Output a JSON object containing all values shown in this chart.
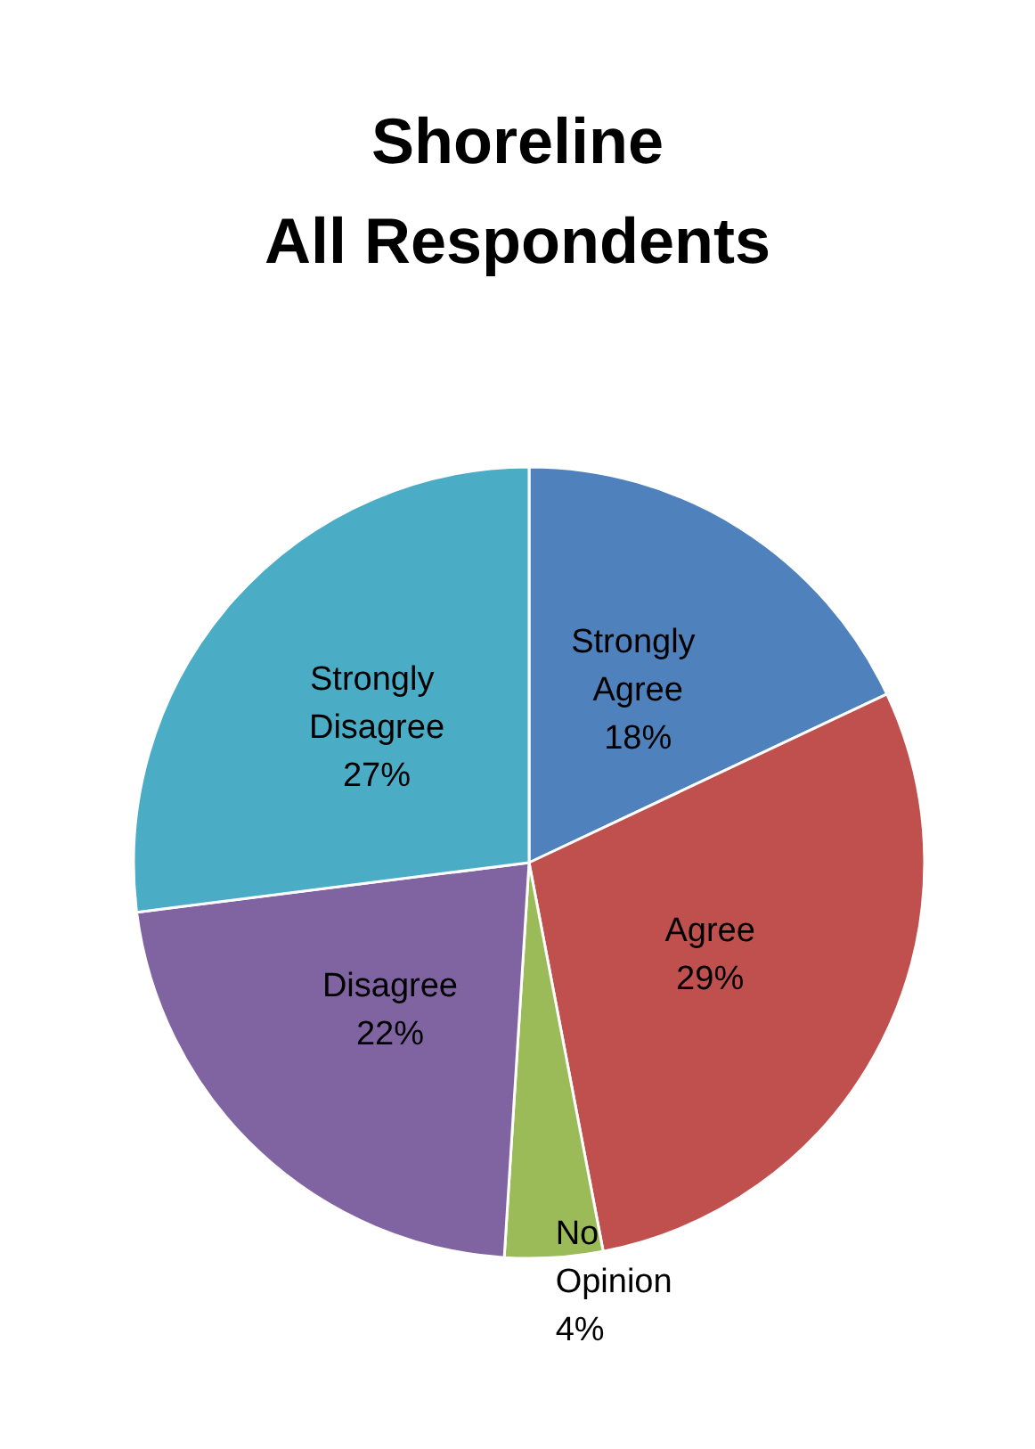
{
  "chart_data": {
    "type": "pie",
    "title": "Shoreline\nAll Respondents",
    "categories": [
      "Strongly Agree",
      "Agree",
      "No Opinion",
      "Disagree",
      "Strongly Disagree"
    ],
    "values": [
      18,
      29,
      4,
      22,
      27
    ],
    "colors": [
      "#4f81bd",
      "#c0504d",
      "#9bbb59",
      "#8064a2",
      "#4bacc6"
    ],
    "value_labels": [
      "18%",
      "29%",
      "4%",
      "22%",
      "27%"
    ],
    "legend": false
  }
}
